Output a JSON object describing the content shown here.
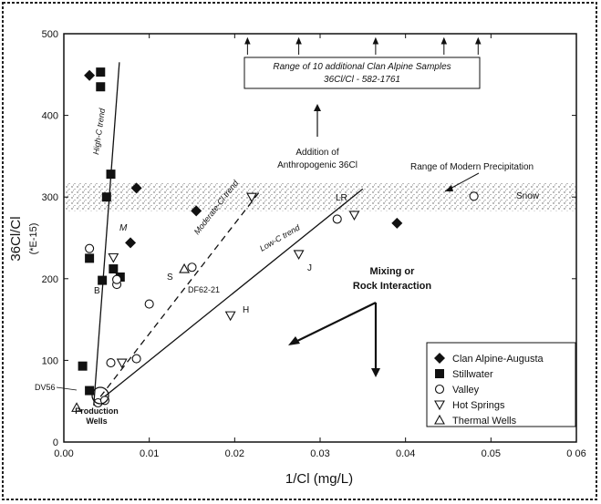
{
  "chart_data": {
    "type": "scatter",
    "xlabel": "1/Cl  (mg/L)",
    "ylabel_main": "36Cl/Cl",
    "ylabel_unit": "(*E-15)",
    "xlim": [
      0,
      0.06
    ],
    "ylim": [
      0,
      500
    ],
    "x_ticks": [
      0,
      0.01,
      0.02,
      0.03,
      0.04,
      0.05,
      0.06
    ],
    "x_tick_labels": [
      "0.00",
      "0.01",
      "0.02",
      "0.03",
      "0.04",
      "0.05",
      "0 06"
    ],
    "y_ticks": [
      0,
      100,
      200,
      300,
      400,
      500
    ],
    "y_tick_labels": [
      "0",
      "100",
      "200",
      "300",
      "400",
      "500"
    ],
    "grid": false,
    "legend_position": "bottom-right",
    "series": [
      {
        "name": "Clan Alpine-Augusta",
        "marker": "diamond",
        "points": [
          [
            0.003,
            449
          ],
          [
            0.0085,
            311
          ],
          [
            0.0078,
            244
          ],
          [
            0.0155,
            283
          ],
          [
            0.039,
            268
          ]
        ]
      },
      {
        "name": "Stillwater",
        "marker": "square",
        "points": [
          [
            0.0043,
            453
          ],
          [
            0.0043,
            435
          ],
          [
            0.0055,
            328
          ],
          [
            0.005,
            300
          ],
          [
            0.003,
            225
          ],
          [
            0.0058,
            212
          ],
          [
            0.0045,
            198
          ],
          [
            0.0066,
            202
          ],
          [
            0.0022,
            93
          ],
          [
            0.003,
            63
          ]
        ]
      },
      {
        "name": "Valley",
        "marker": "circle",
        "points": [
          [
            0.003,
            237
          ],
          [
            0.0062,
            193
          ],
          [
            0.0062,
            199
          ],
          [
            0.01,
            169
          ],
          [
            0.015,
            214
          ],
          [
            0.032,
            273
          ],
          [
            0.048,
            301
          ],
          [
            0.0055,
            97
          ],
          [
            0.0085,
            102
          ],
          [
            0.004,
            48
          ],
          [
            0.0048,
            51
          ]
        ]
      },
      {
        "name": "Hot Springs",
        "marker": "triangle-down",
        "points": [
          [
            0.0058,
            226
          ],
          [
            0.0068,
            97
          ],
          [
            0.022,
            300
          ],
          [
            0.0275,
            230
          ],
          [
            0.0195,
            155
          ],
          [
            0.034,
            278
          ]
        ]
      },
      {
        "name": "Thermal Wells",
        "marker": "triangle-up",
        "points": [
          [
            0.0015,
            42
          ],
          [
            0.0141,
            212
          ]
        ]
      }
    ],
    "trend_lines": [
      {
        "label": "High-C trend",
        "style": "solid",
        "points": [
          [
            0.0035,
            45
          ],
          [
            0.0065,
            465
          ]
        ]
      },
      {
        "label": "Moderate-C trend",
        "style": "dashed",
        "points": [
          [
            0.0035,
            45
          ],
          [
            0.0228,
            305
          ]
        ]
      },
      {
        "label": "Low-C trend",
        "style": "solid",
        "points": [
          [
            0.0035,
            45
          ],
          [
            0.035,
            310
          ]
        ]
      }
    ],
    "modern_precipitation_band": [
      283,
      318
    ],
    "annotations": {
      "range_box_line1": "Range of 10 additional Clan Alpine Samples",
      "range_box_line2": "36Cl/Cl - 582-1761",
      "anthropogenic_line1": "Addition of",
      "anthropogenic_line2": "Anthropogenic 36Cl",
      "modern_precip": "Range of Modern Precipitation",
      "mixing_line1": "Mixing or",
      "mixing_line2": "Rock Interaction",
      "high_c": "High-C trend",
      "moderate_c": "Moderate-Cl trend",
      "low_c": "Low-C trend",
      "production_line1": "Production",
      "production_line2": "Wells",
      "lbl_M": "M",
      "lbl_B": "B",
      "lbl_S": "S",
      "lbl_DF": "DF62-21",
      "lbl_J": "J",
      "lbl_H": "H",
      "lbl_LR": "LR",
      "lbl_snow": "Snow",
      "lbl_DV": "DV56"
    }
  }
}
